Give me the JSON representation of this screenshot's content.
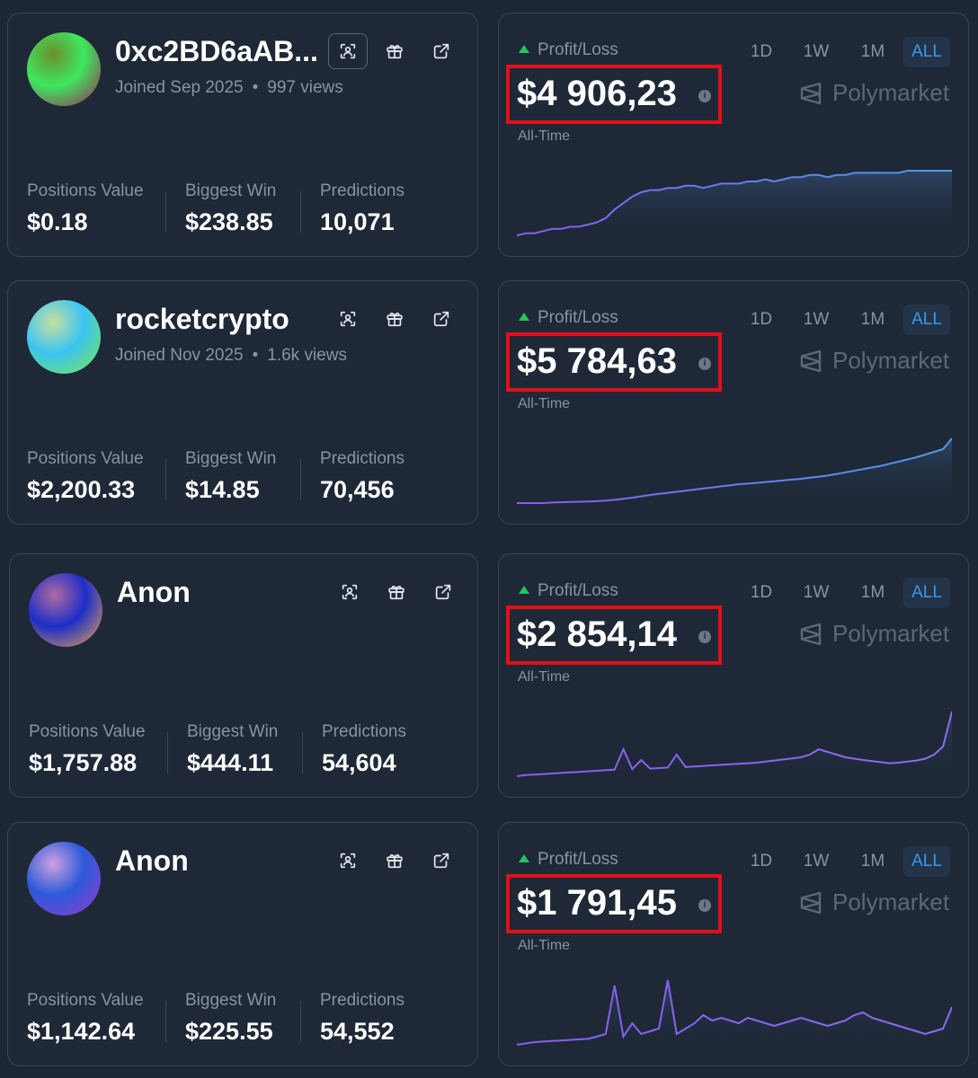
{
  "profiles": [
    {
      "name": "0xc2BD6aAB...",
      "joined": "Joined Sep 2025",
      "views": "997 views",
      "avatar": [
        "#3ee85e",
        "#a21a55",
        "#6b8f2e"
      ],
      "positions_value": "$0.18",
      "biggest_win": "$238.85",
      "predictions": "10,071",
      "pl_amount": "$4 906,23",
      "chart_color": "#4a9ee6",
      "chart_y": [
        0,
        1,
        1,
        2,
        3,
        3,
        4,
        4,
        5,
        6,
        8,
        12,
        15,
        18,
        20,
        21,
        21,
        22,
        22,
        23,
        23,
        22,
        23,
        24,
        24,
        24,
        25,
        25,
        26,
        25,
        26,
        27,
        27,
        28,
        28,
        27,
        28,
        28,
        29,
        29,
        29,
        29,
        29,
        29,
        30,
        30,
        30,
        30,
        30,
        30
      ]
    },
    {
      "name": "rocketcrypto",
      "joined": "Joined Nov 2025",
      "views": "1.6k views",
      "avatar": [
        "#3ac4f2",
        "#7be84a",
        "#c6e0a0"
      ],
      "positions_value": "$2,200.33",
      "biggest_win": "$14.85",
      "predictions": "70,456",
      "pl_amount": "$5 784,63",
      "chart_color": "#4a9ee6",
      "chart_y": [
        0,
        0,
        0,
        0,
        0.2,
        0.3,
        0.4,
        0.5,
        0.6,
        0.7,
        0.9,
        1.2,
        1.6,
        2,
        2.5,
        3,
        3.4,
        3.8,
        4.2,
        4.6,
        5,
        5.4,
        5.8,
        6.2,
        6.6,
        7,
        7.2,
        7.5,
        7.8,
        8.1,
        8.4,
        8.7,
        9,
        9.4,
        9.8,
        10.2,
        10.8,
        11.4,
        12,
        12.6,
        13.2,
        13.8,
        14.6,
        15.4,
        16.2,
        17,
        18,
        19,
        20,
        24
      ]
    },
    {
      "name": "Anon",
      "joined": "",
      "views": "",
      "avatar": [
        "#1d2ec8",
        "#f0a64a",
        "#b06aa0"
      ],
      "positions_value": "$1,757.88",
      "biggest_win": "$444.11",
      "predictions": "54,604",
      "pl_amount": "$2 854,14",
      "chart_color": "#8a6cf0",
      "chart_y": [
        0,
        0.4,
        0.6,
        0.8,
        1,
        1.2,
        1.4,
        1.6,
        1.8,
        2,
        2.2,
        2.4,
        10,
        2.6,
        6,
        2.8,
        3,
        3.2,
        8,
        3.4,
        3.6,
        3.8,
        4,
        4.2,
        4.4,
        4.6,
        4.8,
        5,
        5.4,
        5.8,
        6.2,
        6.6,
        7,
        8,
        10,
        9,
        8,
        7,
        6.5,
        6,
        5.6,
        5.2,
        4.8,
        5,
        5.4,
        5.8,
        6.5,
        8,
        11,
        24
      ]
    },
    {
      "name": "Anon",
      "joined": "",
      "views": "",
      "avatar": [
        "#2a5ad8",
        "#9a3ad0",
        "#d0a0e0"
      ],
      "positions_value": "$1,142.64",
      "biggest_win": "$225.55",
      "predictions": "54,552",
      "pl_amount": "$1 791,45",
      "chart_color": "#8a6cf0",
      "chart_y": [
        0,
        0.5,
        1,
        1.2,
        1.4,
        1.6,
        1.8,
        2,
        2.2,
        3,
        4,
        22,
        3,
        8,
        4,
        5,
        6,
        24,
        4,
        6,
        8,
        11,
        9,
        10,
        9,
        8,
        10,
        9,
        8,
        7,
        8,
        9,
        10,
        9,
        8,
        7,
        8,
        9,
        11,
        12,
        10,
        9,
        8,
        7,
        6,
        5,
        4,
        5,
        6,
        14
      ]
    }
  ],
  "labels": {
    "positions_value": "Positions Value",
    "biggest_win": "Biggest Win",
    "predictions": "Predictions",
    "profit_loss": "Profit/Loss",
    "all_time": "All-Time",
    "brand": "Polymarket",
    "info": "i",
    "timeframes": [
      "1D",
      "1W",
      "1M",
      "ALL"
    ]
  }
}
